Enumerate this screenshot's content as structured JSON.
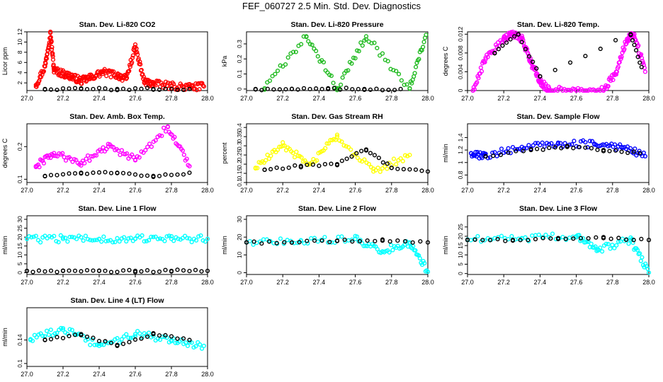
{
  "page": {
    "title": "FEF_060727  2.5 Min. Std. Dev. Diagnostics"
  },
  "colors": {
    "red": "#ff0000",
    "green": "#22bb22",
    "magenta": "#ff00ff",
    "yellow": "#ffff00",
    "blue": "#0000ff",
    "cyan": "#00ffff",
    "black": "#000000"
  },
  "chart_data": [
    {
      "type": "scatter",
      "title": "Stan. Dev. Li-820 CO2",
      "ylabel": "Licor ppm",
      "xlabel": "",
      "xlim": [
        27.0,
        28.0
      ],
      "ylim": [
        0.5,
        12
      ],
      "xticks": [
        "27.0",
        "27.2",
        "27.4",
        "27.6",
        "27.8",
        "28.0"
      ],
      "yticks": [
        2,
        4,
        6,
        8,
        10,
        12
      ],
      "series": [
        {
          "color": "red",
          "points": [
            [
              27.05,
              1.6
            ],
            [
              27.1,
              5.2
            ],
            [
              27.13,
              11.8
            ],
            [
              27.15,
              4.5
            ],
            [
              27.2,
              3.8
            ],
            [
              27.25,
              3.2
            ],
            [
              27.3,
              2.4
            ],
            [
              27.35,
              3.0
            ],
            [
              27.42,
              4.1
            ],
            [
              27.5,
              3.5
            ],
            [
              27.55,
              2.8
            ],
            [
              27.6,
              9.0
            ],
            [
              27.65,
              2.2
            ],
            [
              27.7,
              1.8
            ],
            [
              27.8,
              1.4
            ],
            [
              27.9,
              1.2
            ],
            [
              27.98,
              1.3
            ]
          ]
        },
        {
          "color": "black",
          "points": [
            [
              27.1,
              0.8
            ],
            [
              27.3,
              0.8
            ],
            [
              27.5,
              0.8
            ],
            [
              27.7,
              0.8
            ],
            [
              27.9,
              0.8
            ]
          ]
        }
      ]
    },
    {
      "type": "scatter",
      "title": "Stan. Dev. Li-820 Pressure",
      "ylabel": "kPa",
      "xlabel": "",
      "xlim": [
        27.0,
        28.0
      ],
      "ylim": [
        -0.01,
        0.38
      ],
      "xticks": [
        "27.0",
        "27.2",
        "27.4",
        "27.6",
        "27.8",
        "28.0"
      ],
      "yticks": [
        0.0,
        0.1,
        0.2,
        0.3
      ],
      "series": [
        {
          "color": "green",
          "points": [
            [
              27.33,
              0.35
            ],
            [
              27.66,
              0.35
            ],
            [
              27.99,
              0.36
            ],
            [
              27.1,
              0.005
            ],
            [
              27.5,
              0.005
            ],
            [
              27.9,
              0.005
            ]
          ]
        },
        {
          "color": "black",
          "points": [
            [
              27.05,
              0.0
            ],
            [
              27.25,
              0.0
            ],
            [
              27.45,
              0.0
            ],
            [
              27.65,
              0.0
            ],
            [
              27.85,
              0.0
            ]
          ]
        }
      ]
    },
    {
      "type": "scatter",
      "title": "Stan. Dev. Li-820 Temp.",
      "ylabel": "degrees C",
      "xlabel": "",
      "xlim": [
        27.0,
        28.0
      ],
      "ylim": [
        0.0,
        0.0125
      ],
      "xticks": [
        "27.0",
        "27.2",
        "27.4",
        "27.6",
        "27.8",
        "28.0"
      ],
      "yticks": [
        0.0,
        0.004,
        0.008,
        0.012
      ],
      "series": [
        {
          "color": "magenta",
          "points": [
            [
              27.03,
              0.0
            ],
            [
              27.1,
              0.007
            ],
            [
              27.2,
              0.011
            ],
            [
              27.25,
              0.012
            ],
            [
              27.3,
              0.011
            ],
            [
              27.35,
              0.006
            ],
            [
              27.4,
              0.002
            ],
            [
              27.45,
              0.0
            ],
            [
              27.6,
              0.0
            ],
            [
              27.75,
              0.0
            ],
            [
              27.82,
              0.004
            ],
            [
              27.88,
              0.011
            ],
            [
              27.92,
              0.012
            ],
            [
              27.98,
              0.004
            ]
          ]
        },
        {
          "color": "black",
          "points": [
            [
              27.15,
              0.008
            ],
            [
              27.28,
              0.012
            ],
            [
              27.4,
              0.003
            ],
            [
              27.9,
              0.012
            ],
            [
              27.96,
              0.005
            ]
          ]
        }
      ]
    },
    {
      "type": "scatter",
      "title": "Stan. Dev. Amb. Box Temp.",
      "ylabel": "degrees C",
      "xlabel": "",
      "xlim": [
        27.0,
        28.0
      ],
      "ylim": [
        0.09,
        0.27
      ],
      "xticks": [
        "27.0",
        "27.2",
        "27.4",
        "27.6",
        "27.8",
        "28.0"
      ],
      "yticks": [
        0.1,
        0.2
      ],
      "series": [
        {
          "color": "magenta",
          "points": [
            [
              27.05,
              0.14
            ],
            [
              27.15,
              0.18
            ],
            [
              27.3,
              0.15
            ],
            [
              27.45,
              0.2
            ],
            [
              27.6,
              0.16
            ],
            [
              27.78,
              0.26
            ],
            [
              27.9,
              0.14
            ]
          ]
        },
        {
          "color": "black",
          "points": [
            [
              27.1,
              0.11
            ],
            [
              27.3,
              0.12
            ],
            [
              27.5,
              0.12
            ],
            [
              27.7,
              0.11
            ],
            [
              27.9,
              0.12
            ]
          ]
        }
      ]
    },
    {
      "type": "scatter",
      "title": "Stan. Dev. Gas Stream RH",
      "ylabel": "percent",
      "xlabel": "",
      "xlim": [
        27.0,
        28.0
      ],
      "ylim": [
        0.1,
        0.42
      ],
      "xticks": [
        "27.0",
        "27.2",
        "27.4",
        "27.6",
        "27.8",
        "28.0"
      ],
      "yticks": [
        0.1,
        0.15,
        0.2,
        0.25,
        0.3,
        0.35,
        0.4
      ],
      "series": [
        {
          "color": "yellow",
          "points": [
            [
              27.05,
              0.18
            ],
            [
              27.2,
              0.3
            ],
            [
              27.35,
              0.2
            ],
            [
              27.5,
              0.35
            ],
            [
              27.7,
              0.16
            ],
            [
              27.9,
              0.25
            ]
          ]
        },
        {
          "color": "black",
          "points": [
            [
              27.1,
              0.17
            ],
            [
              27.3,
              0.19
            ],
            [
              27.5,
              0.2
            ],
            [
              27.66,
              0.28
            ],
            [
              27.8,
              0.18
            ],
            [
              28.0,
              0.16
            ]
          ]
        }
      ]
    },
    {
      "type": "scatter",
      "title": "Stan. Dev. Sample Flow",
      "ylabel": "ml/min",
      "xlabel": "",
      "xlim": [
        27.0,
        28.0
      ],
      "ylim": [
        0.68,
        1.62
      ],
      "xticks": [
        "27.0",
        "27.2",
        "27.4",
        "27.6",
        "27.8",
        "28.0"
      ],
      "yticks": [
        0.8,
        1.0,
        1.2,
        1.4
      ],
      "series": [
        {
          "color": "blue",
          "points": [
            [
              27.02,
              1.15
            ],
            [
              27.1,
              1.1
            ],
            [
              27.3,
              1.25
            ],
            [
              27.5,
              1.3
            ],
            [
              27.7,
              1.3
            ],
            [
              27.85,
              1.25
            ],
            [
              27.98,
              1.1
            ]
          ]
        },
        {
          "color": "black",
          "points": [
            [
              27.1,
              1.1
            ],
            [
              27.35,
              1.2
            ],
            [
              27.55,
              1.25
            ],
            [
              27.75,
              1.2
            ],
            [
              27.95,
              1.15
            ]
          ]
        }
      ]
    },
    {
      "type": "scatter",
      "title": "Stan. Dev. Line 1 Flow",
      "ylabel": "ml/min",
      "xlabel": "",
      "xlim": [
        27.0,
        28.0
      ],
      "ylim": [
        -1,
        32
      ],
      "xticks": [
        "27.0",
        "27.2",
        "27.4",
        "27.6",
        "27.8",
        "28.0"
      ],
      "yticks": [
        0,
        5,
        10,
        15,
        20,
        25,
        30
      ],
      "series": [
        {
          "color": "cyan",
          "points": [
            [
              27.0,
              19
            ],
            [
              27.2,
              19
            ],
            [
              27.4,
              19
            ],
            [
              27.6,
              19
            ],
            [
              27.8,
              19
            ],
            [
              28.0,
              19
            ]
          ]
        },
        {
          "color": "black",
          "points": [
            [
              27.0,
              1
            ],
            [
              27.2,
              1
            ],
            [
              27.4,
              1
            ],
            [
              27.6,
              1
            ],
            [
              27.8,
              1
            ],
            [
              28.0,
              1
            ]
          ]
        }
      ]
    },
    {
      "type": "scatter",
      "title": "Stan. Dev. Line 2 Flow",
      "ylabel": "ml/min",
      "xlabel": "",
      "xlim": [
        27.0,
        28.0
      ],
      "ylim": [
        -1,
        32
      ],
      "xticks": [
        "27.0",
        "27.2",
        "27.4",
        "27.6",
        "27.8",
        "28.0"
      ],
      "yticks": [
        0,
        10,
        20,
        30
      ],
      "series": [
        {
          "color": "cyan",
          "points": [
            [
              27.0,
              17
            ],
            [
              27.3,
              18
            ],
            [
              27.6,
              19
            ],
            [
              27.75,
              12
            ],
            [
              27.9,
              17
            ],
            [
              28.0,
              0.5
            ]
          ]
        },
        {
          "color": "black",
          "points": [
            [
              27.0,
              17
            ],
            [
              27.25,
              17
            ],
            [
              27.5,
              18
            ],
            [
              27.75,
              18
            ],
            [
              28.0,
              17
            ]
          ]
        }
      ]
    },
    {
      "type": "scatter",
      "title": "Stan. Dev. Line 3 Flow",
      "ylabel": "ml/min",
      "xlabel": "",
      "xlim": [
        27.0,
        28.0
      ],
      "ylim": [
        -0.5,
        31
      ],
      "xticks": [
        "27.0",
        "27.2",
        "27.4",
        "27.6",
        "27.8",
        "28.0"
      ],
      "yticks": [
        0,
        5,
        10,
        15,
        20,
        25
      ],
      "series": [
        {
          "color": "cyan",
          "points": [
            [
              27.0,
              18
            ],
            [
              27.3,
              19
            ],
            [
              27.6,
              20
            ],
            [
              27.72,
              13
            ],
            [
              27.9,
              18
            ],
            [
              28.0,
              0.5
            ]
          ]
        },
        {
          "color": "black",
          "points": [
            [
              27.0,
              18
            ],
            [
              27.25,
              18
            ],
            [
              27.5,
              19
            ],
            [
              27.75,
              19
            ],
            [
              28.0,
              18
            ]
          ]
        }
      ]
    },
    {
      "type": "scatter",
      "title": "Stan. Dev. Line 4 (LT) Flow",
      "ylabel": "ml/min",
      "xlabel": "",
      "xlim": [
        27.0,
        28.0
      ],
      "ylim": [
        0.095,
        0.195
      ],
      "xticks": [
        "27.0",
        "27.2",
        "27.4",
        "27.6",
        "27.8",
        "28.0"
      ],
      "yticks": [
        0.1,
        0.14
      ],
      "series": [
        {
          "color": "cyan",
          "points": [
            [
              27.02,
              0.14
            ],
            [
              27.2,
              0.16
            ],
            [
              27.4,
              0.13
            ],
            [
              27.6,
              0.15
            ],
            [
              27.8,
              0.14
            ],
            [
              27.98,
              0.13
            ]
          ]
        },
        {
          "color": "black",
          "points": [
            [
              27.1,
              0.14
            ],
            [
              27.3,
              0.15
            ],
            [
              27.5,
              0.13
            ],
            [
              27.7,
              0.15
            ],
            [
              27.9,
              0.14
            ]
          ]
        }
      ]
    }
  ]
}
